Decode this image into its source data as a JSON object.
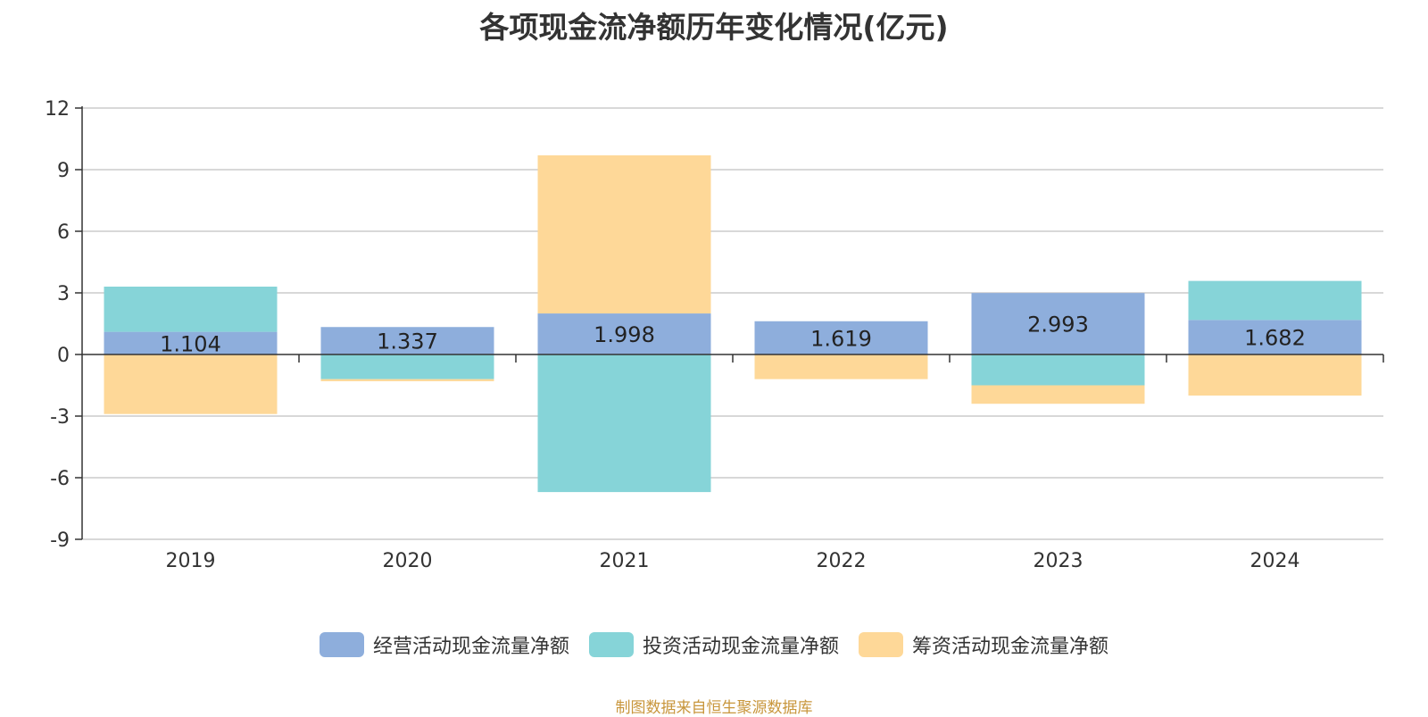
{
  "source_note": "制图数据来自恒生聚源数据库",
  "colors": {
    "operating": "#8eaedc",
    "investing": "#86d4d8",
    "financing": "#fed898",
    "grid": "#cccccc",
    "axis": "#333333"
  },
  "chart_data": {
    "type": "bar",
    "stacked": true,
    "title": "各项现金流净额历年变化情况(亿元)",
    "xlabel": "",
    "ylabel": "",
    "categories": [
      "2019",
      "2020",
      "2021",
      "2022",
      "2023",
      "2024"
    ],
    "ylim": [
      -9,
      12
    ],
    "yticks": [
      12,
      9,
      6,
      3,
      0,
      -3,
      -6,
      -9
    ],
    "grid": true,
    "legend_position": "bottom",
    "series": [
      {
        "name": "经营活动现金流量净额",
        "values": [
          1.104,
          1.337,
          1.998,
          1.619,
          2.993,
          1.682
        ],
        "labels": [
          "1.104",
          "1.337",
          "1.998",
          "1.619",
          "2.993",
          "1.682"
        ]
      },
      {
        "name": "投资活动现金流量净额",
        "values": [
          2.2,
          -1.2,
          -6.7,
          0,
          -1.5,
          1.9
        ]
      },
      {
        "name": "筹资活动现金流量净额",
        "values": [
          -2.9,
          -0.1,
          7.7,
          -1.2,
          -0.9,
          -2.0
        ]
      }
    ]
  }
}
